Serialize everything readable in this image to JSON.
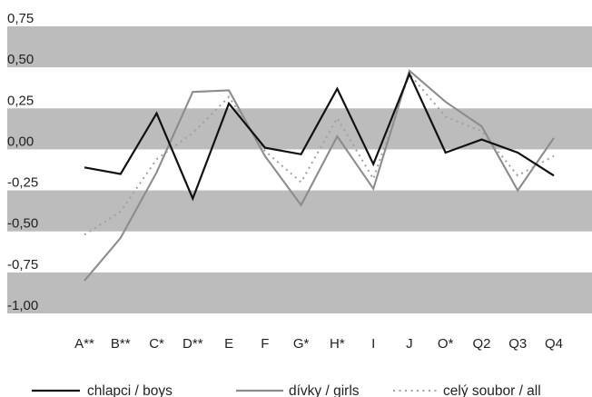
{
  "chart_data": {
    "type": "line",
    "title": "",
    "xlabel": "",
    "ylabel": "",
    "categories": [
      "A**",
      "B**",
      "C*",
      "D**",
      "E",
      "F",
      "G*",
      "H*",
      "I",
      "J",
      "O*",
      "Q2",
      "Q3",
      "Q4"
    ],
    "ylim": [
      -1.0,
      0.75
    ],
    "yticks": [
      "0,75",
      "0,50",
      "0,25",
      "0,00",
      "-0,25",
      "-0,50",
      "-0,75",
      "-1,00"
    ],
    "ytick_values": [
      0.75,
      0.5,
      0.25,
      0.0,
      -0.25,
      -0.5,
      -0.75,
      -1.0
    ],
    "banding": "alternating grey bands every 0.25",
    "legend_position": "bottom",
    "series": [
      {
        "name": "chlapci / boys",
        "color": "#111111",
        "dash": "solid",
        "points": [
          {
            "c": "A**",
            "y": -0.11
          },
          {
            "c": "B**",
            "y": -0.15
          },
          {
            "c": "C*",
            "y": 0.22
          },
          {
            "c": "D**",
            "y": -0.3
          },
          {
            "c": "E",
            "y": 0.28
          },
          {
            "c": "F",
            "y": 0.01
          },
          {
            "c": "G*",
            "y": -0.03
          },
          {
            "c": "H*",
            "y": 0.37
          },
          {
            "c": "I",
            "y": -0.09
          },
          {
            "c": "J",
            "y": 0.46
          },
          {
            "c": "O*",
            "y": -0.02
          },
          {
            "c": "Q2",
            "y": 0.06
          },
          {
            "c": "Q3",
            "y": -0.02
          },
          {
            "c": "Q4",
            "y": -0.16
          }
        ]
      },
      {
        "name": "dívky / girls",
        "color": "#8c8c8c",
        "dash": "solid",
        "points": [
          {
            "c": "A**",
            "y": -0.8
          },
          {
            "c": "B**",
            "y": -0.54
          },
          {
            "c": "C*",
            "y": -0.14
          },
          {
            "c": "D**",
            "y": 0.35
          },
          {
            "c": "E",
            "y": 0.36
          },
          {
            "c": "F",
            "y": -0.04
          },
          {
            "c": "G*",
            "y": -0.34
          },
          {
            "c": "H*",
            "y": 0.08
          },
          {
            "c": "I",
            "y": -0.24
          },
          {
            "c": "J",
            "y": 0.48
          },
          {
            "c": "O*",
            "y": 0.29
          },
          {
            "c": "Q2",
            "y": 0.14
          },
          {
            "c": "Q3",
            "y": -0.25
          },
          {
            "c": "Q4",
            "y": 0.07
          }
        ]
      },
      {
        "name": "celý soubor / all",
        "color": "#a0a0a0",
        "dash": "dotted",
        "points": [
          {
            "c": "A**",
            "y": -0.52
          },
          {
            "c": "B**",
            "y": -0.38
          },
          {
            "c": "C*",
            "y": -0.06
          },
          {
            "c": "D**",
            "y": 0.1
          },
          {
            "c": "E",
            "y": 0.32
          },
          {
            "c": "F",
            "y": -0.01
          },
          {
            "c": "G*",
            "y": -0.2
          },
          {
            "c": "H*",
            "y": 0.19
          },
          {
            "c": "I",
            "y": -0.18
          },
          {
            "c": "J",
            "y": 0.46
          },
          {
            "c": "O*",
            "y": 0.2
          },
          {
            "c": "Q2",
            "y": 0.11
          },
          {
            "c": "Q3",
            "y": -0.16
          },
          {
            "c": "Q4",
            "y": -0.04
          }
        ]
      }
    ]
  }
}
